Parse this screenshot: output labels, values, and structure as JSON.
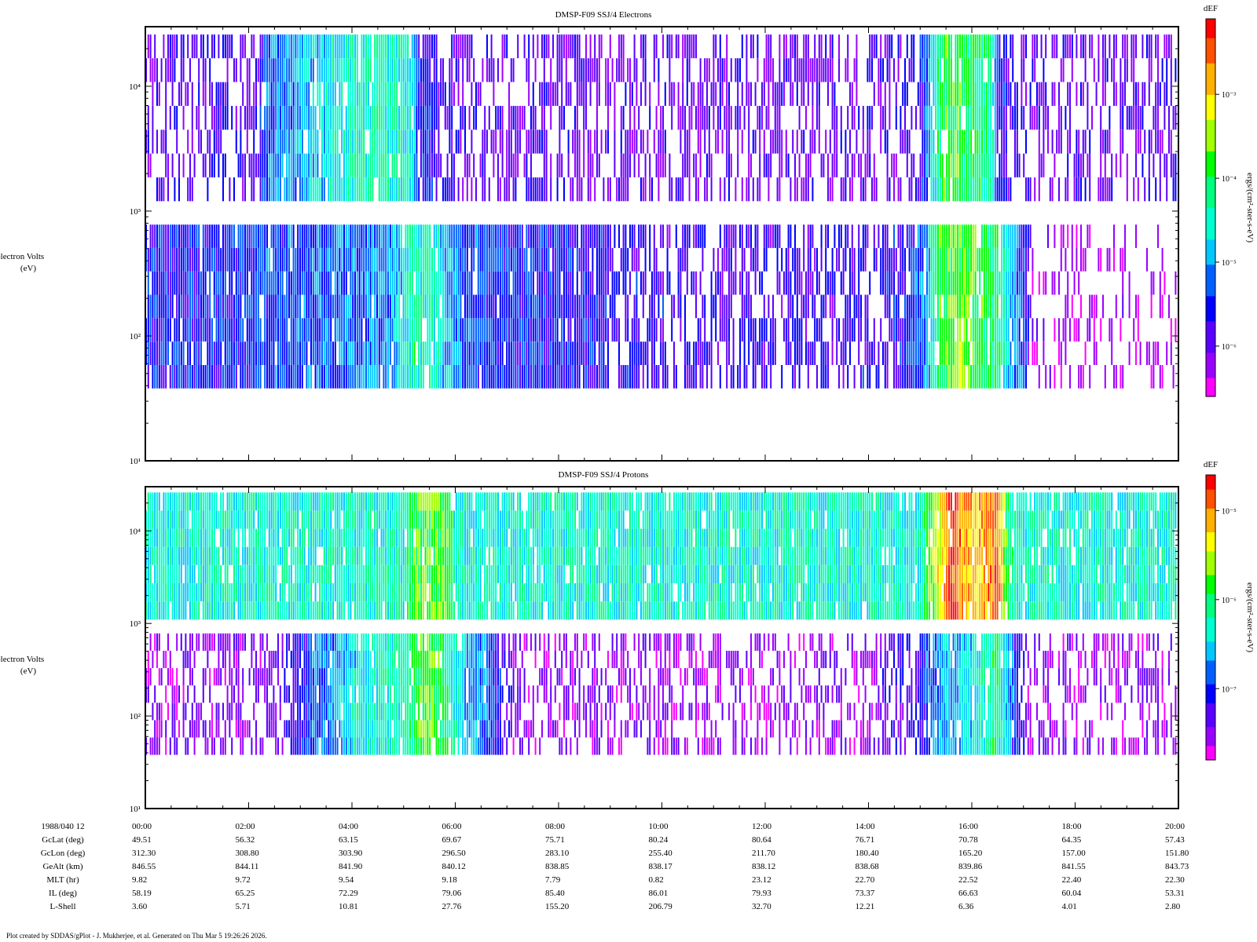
{
  "footer": "Plot created by SDDAS/gPlot - J. Mukherjee, et al.  Generated on Thu Mar 5 19:26:26 2026.",
  "colormap": [
    "#ff00ff",
    "#9b00ff",
    "#5a00ff",
    "#0000ff",
    "#0060ff",
    "#00c8ff",
    "#00ffd0",
    "#00ff80",
    "#00ff00",
    "#a0ff00",
    "#ffff00",
    "#ffb000",
    "#ff5000",
    "#ff0000"
  ],
  "chart_data": [
    {
      "type": "heatmap",
      "title": "DMSP-F09 SSJ/4 Electrons",
      "ylabel": "electron Volts",
      "yunit": "(eV)",
      "yscale": "log",
      "ylim": [
        10,
        30000
      ],
      "ytick_labels": [
        "10¹",
        "10²",
        "10³",
        "10⁴"
      ],
      "time_range": [
        "00:00",
        "20:00"
      ],
      "colorbar": {
        "title": "dEF",
        "label": "ergs/(cm²-ster-s-eV)",
        "scale": "log",
        "tick_labels": [
          "10⁻⁶",
          "10⁻⁵",
          "10⁻⁴",
          "10⁻³"
        ],
        "range_exponent": [
          -6.6,
          -2.1
        ]
      },
      "energy_bands": [
        {
          "from": 38,
          "to": 780
        },
        {
          "from": 1200,
          "to": 26000
        }
      ],
      "flux_profile": {
        "low_energy": [
          [
            0,
            3
          ],
          [
            2.5,
            3.5
          ],
          [
            4.7,
            4.2
          ],
          [
            5.2,
            6.5
          ],
          [
            5.6,
            6
          ],
          [
            6.2,
            3.5
          ],
          [
            9,
            2.5
          ],
          [
            12,
            2.3
          ],
          [
            14.5,
            2.5
          ],
          [
            15.1,
            4
          ],
          [
            15.4,
            8
          ],
          [
            15.8,
            8.5
          ],
          [
            16.5,
            7
          ],
          [
            16.8,
            4.5
          ],
          [
            17.05,
            3
          ],
          [
            17.2,
            0.6
          ],
          [
            20,
            0.5
          ]
        ],
        "high_energy": [
          [
            0,
            1.8
          ],
          [
            2.2,
            2.2
          ],
          [
            2.3,
            3.5
          ],
          [
            3.5,
            5.5
          ],
          [
            4.5,
            6.5
          ],
          [
            5.2,
            5.5
          ],
          [
            5.3,
            3
          ],
          [
            6,
            2
          ],
          [
            9,
            1.6
          ],
          [
            14.5,
            1.8
          ],
          [
            15,
            2.5
          ],
          [
            15.2,
            5
          ],
          [
            15.5,
            8
          ],
          [
            16.4,
            6.5
          ],
          [
            16.5,
            3
          ],
          [
            17,
            1.8
          ],
          [
            20,
            1.8
          ]
        ]
      }
    },
    {
      "type": "heatmap",
      "title": "DMSP-F09 SSJ/4 Protons",
      "ylabel": "electron Volts",
      "yunit": "(eV)",
      "yscale": "log",
      "ylim": [
        10,
        30000
      ],
      "ytick_labels": [
        "10¹",
        "10²",
        "10³",
        "10⁴"
      ],
      "time_range": [
        "00:00",
        "20:00"
      ],
      "colorbar": {
        "title": "dEF",
        "label": "ergs/(cm²-ster-s-eV)",
        "scale": "log",
        "tick_labels": [
          "10⁻⁷",
          "10⁻⁶",
          "10⁻⁵"
        ],
        "range_exponent": [
          -7.8,
          -4.6
        ]
      },
      "energy_bands": [
        {
          "from": 38,
          "to": 780
        },
        {
          "from": 1100,
          "to": 26000
        }
      ],
      "flux_profile": {
        "low_energy": [
          [
            0,
            1
          ],
          [
            2.5,
            1.5
          ],
          [
            3.2,
            3.5
          ],
          [
            3.7,
            4.5
          ],
          [
            4,
            5.5
          ],
          [
            5,
            6.5
          ],
          [
            5.5,
            8.5
          ],
          [
            6.0,
            6
          ],
          [
            6.7,
            3.5
          ],
          [
            7.2,
            1.2
          ],
          [
            14,
            1
          ],
          [
            15.0,
            2.5
          ],
          [
            15.3,
            4.5
          ],
          [
            16,
            5.5
          ],
          [
            16.5,
            7
          ],
          [
            16.8,
            3.5
          ],
          [
            17.1,
            1
          ],
          [
            20,
            1
          ]
        ],
        "high_energy": [
          [
            0,
            5.8
          ],
          [
            5.0,
            6.2
          ],
          [
            5.2,
            8
          ],
          [
            5.8,
            8.5
          ],
          [
            6.0,
            6
          ],
          [
            15,
            6
          ],
          [
            15.3,
            9
          ],
          [
            15.6,
            12.5
          ],
          [
            16,
            10.5
          ],
          [
            16.5,
            12
          ],
          [
            16.7,
            7
          ],
          [
            17,
            6
          ],
          [
            20,
            6
          ]
        ]
      }
    }
  ],
  "ephemeris": {
    "header": "1988/040 12",
    "times": [
      "00:00",
      "02:00",
      "04:00",
      "06:00",
      "08:00",
      "10:00",
      "12:00",
      "14:00",
      "16:00",
      "18:00",
      "20:00"
    ],
    "rows": [
      {
        "label": "GcLat (deg)",
        "values": [
          "49.51",
          "56.32",
          "63.15",
          "69.67",
          "75.71",
          "80.24",
          "80.64",
          "76.71",
          "70.78",
          "64.35",
          "57.43"
        ]
      },
      {
        "label": "GcLon (deg)",
        "values": [
          "312.30",
          "308.80",
          "303.90",
          "296.50",
          "283.10",
          "255.40",
          "211.70",
          "180.40",
          "165.20",
          "157.00",
          "151.80"
        ]
      },
      {
        "label": "GeAlt (km)",
        "values": [
          "846.55",
          "844.11",
          "841.90",
          "840.12",
          "838.85",
          "838.17",
          "838.12",
          "838.68",
          "839.86",
          "841.55",
          "843.73"
        ]
      },
      {
        "label": "MLT (hr)",
        "values": [
          "9.82",
          "9.72",
          "9.54",
          "9.18",
          "7.79",
          "0.82",
          "23.12",
          "22.70",
          "22.52",
          "22.40",
          "22.30"
        ]
      },
      {
        "label": "IL (deg)",
        "values": [
          "58.19",
          "65.25",
          "72.29",
          "79.06",
          "85.40",
          "86.01",
          "79.93",
          "73.37",
          "66.63",
          "60.04",
          "53.31"
        ]
      },
      {
        "label": "L-Shell",
        "values": [
          "3.60",
          "5.71",
          "10.81",
          "27.76",
          "155.20",
          "206.79",
          "32.70",
          "12.21",
          "6.36",
          "4.01",
          "2.80"
        ]
      }
    ]
  }
}
